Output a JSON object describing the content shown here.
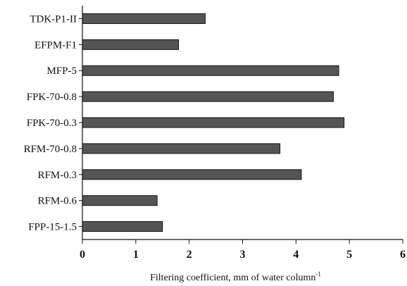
{
  "chart_data": {
    "type": "bar",
    "orientation": "horizontal",
    "categories": [
      "TDK-P1-II",
      "EFPM-F1",
      "MFP-5",
      "FPK-70-0.8",
      "FPK-70-0.3",
      "RFM-70-0.8",
      "RFM-0.3",
      "RFM-0.6",
      "FPP-15-1.5"
    ],
    "values": [
      2.3,
      1.8,
      4.8,
      4.7,
      4.9,
      3.7,
      4.1,
      1.4,
      1.5
    ],
    "x_ticks": [
      "0",
      "1",
      "2",
      "3",
      "4",
      "5",
      "6"
    ],
    "xlim": [
      0,
      6
    ],
    "xlabel": "Filtering coefficient, mm of water column",
    "xlabel_superscript": "-1",
    "title": "",
    "ylabel": "",
    "grid": false,
    "legend": "none",
    "bar_color": "#555555",
    "bar_edge_color": "#111111"
  }
}
